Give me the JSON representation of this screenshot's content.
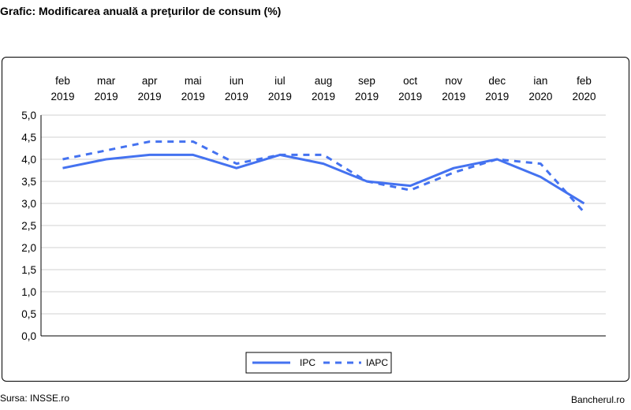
{
  "header": {
    "title": "Grafic: Modificarea anuală a preţurilor de consum (%)"
  },
  "footer": {
    "source": "Sursa: INSSE.ro",
    "brand": "Bancherul.ro"
  },
  "chart_data": {
    "type": "line",
    "title": "",
    "xlabel": "",
    "ylabel": "",
    "categories": [
      [
        "feb",
        "2019"
      ],
      [
        "mar",
        "2019"
      ],
      [
        "apr",
        "2019"
      ],
      [
        "mai",
        "2019"
      ],
      [
        "iun",
        "2019"
      ],
      [
        "iul",
        "2019"
      ],
      [
        "aug",
        "2019"
      ],
      [
        "sep",
        "2019"
      ],
      [
        "oct",
        "2019"
      ],
      [
        "nov",
        "2019"
      ],
      [
        "dec",
        "2019"
      ],
      [
        "ian",
        "2020"
      ],
      [
        "feb",
        "2020"
      ]
    ],
    "x_axis_position": "top",
    "ylim": [
      0,
      5
    ],
    "yticks": [
      "0,0",
      "0,5",
      "1,0",
      "1,5",
      "2,0",
      "2,5",
      "3,0",
      "3,5",
      "4,0",
      "4,5",
      "5,0"
    ],
    "grid": "horizontal",
    "legend_position": "bottom",
    "series": [
      {
        "name": "IPC",
        "style": "solid",
        "color": "#4472f0",
        "values": [
          3.8,
          4.0,
          4.1,
          4.1,
          3.8,
          4.1,
          3.9,
          3.5,
          3.4,
          3.8,
          4.0,
          3.6,
          3.0
        ]
      },
      {
        "name": "IAPC",
        "style": "dashed",
        "color": "#4472f0",
        "values": [
          4.0,
          4.2,
          4.4,
          4.4,
          3.9,
          4.1,
          4.1,
          3.5,
          3.3,
          3.7,
          4.0,
          3.9,
          2.8
        ]
      }
    ]
  }
}
